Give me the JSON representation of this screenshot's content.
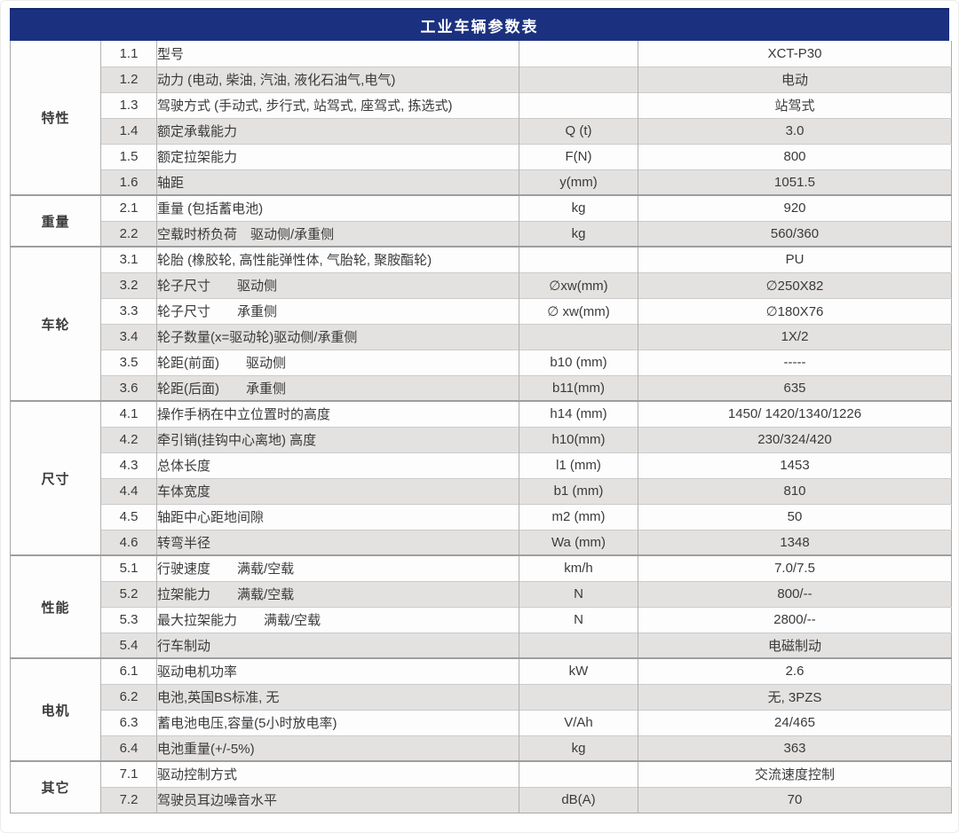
{
  "title": "工业车辆参数表",
  "colors": {
    "header_bg": "#1b3180",
    "header_text": "#ffffff",
    "stripe": "#e4e2e0",
    "row_bg": "#fdfdfd",
    "section_border": "#9e9e9e",
    "row_border": "#cbcbcb"
  },
  "sections": [
    {
      "category": "特性",
      "rows": [
        {
          "no": "1.1",
          "desc": "型号",
          "unit": "",
          "value": "XCT-P30"
        },
        {
          "no": "1.2",
          "desc": "动力 (电动, 柴油, 汽油, 液化石油气,电气)",
          "unit": "",
          "value": "电动"
        },
        {
          "no": "1.3",
          "desc": "驾驶方式 (手动式, 步行式, 站驾式, 座驾式, 拣选式)",
          "unit": "",
          "value": "站驾式"
        },
        {
          "no": "1.4",
          "desc": "额定承载能力",
          "unit": "Q (t)",
          "value": "3.0"
        },
        {
          "no": "1.5",
          "desc": "额定拉架能力",
          "unit": "F(N)",
          "value": "800"
        },
        {
          "no": "1.6",
          "desc": "轴距",
          "unit": "y(mm)",
          "value": "1051.5"
        }
      ]
    },
    {
      "category": "重量",
      "rows": [
        {
          "no": "2.1",
          "desc": "重量 (包括蓄电池)",
          "unit": "kg",
          "value": "920"
        },
        {
          "no": "2.2",
          "desc": "空载时桥负荷　驱动侧/承重侧",
          "unit": "kg",
          "value": "560/360"
        }
      ]
    },
    {
      "category": "车轮",
      "rows": [
        {
          "no": "3.1",
          "desc": "轮胎 (橡胶轮, 高性能弹性体, 气胎轮, 聚胺酯轮)",
          "unit": "",
          "value": "PU"
        },
        {
          "no": "3.2",
          "desc": "轮子尺寸　　驱动侧",
          "unit": "∅xw(mm)",
          "value": "∅250X82"
        },
        {
          "no": "3.3",
          "desc": "轮子尺寸　　承重侧",
          "unit": "∅ xw(mm)",
          "value": "∅180X76"
        },
        {
          "no": "3.4",
          "desc": "轮子数量(x=驱动轮)驱动侧/承重侧",
          "unit": "",
          "value": "1X/2"
        },
        {
          "no": "3.5",
          "desc": "轮距(前面)　　驱动侧",
          "unit": "b10 (mm)",
          "value": "-----"
        },
        {
          "no": "3.6",
          "desc": "轮距(后面)　　承重侧",
          "unit": "b11(mm)",
          "value": "635"
        }
      ]
    },
    {
      "category": "尺寸",
      "rows": [
        {
          "no": "4.1",
          "desc": "操作手柄在中立位置时的高度",
          "unit": "h14 (mm)",
          "value": "1450/ 1420/1340/1226"
        },
        {
          "no": "4.2",
          "desc": "牵引销(挂钩中心离地) 高度",
          "unit": "h10(mm)",
          "value": "230/324/420"
        },
        {
          "no": "4.3",
          "desc": "总体长度",
          "unit": "l1 (mm)",
          "value": "1453"
        },
        {
          "no": "4.4",
          "desc": "车体宽度",
          "unit": "b1 (mm)",
          "value": "810"
        },
        {
          "no": "4.5",
          "desc": "轴距中心距地间隙",
          "unit": "m2 (mm)",
          "value": "50"
        },
        {
          "no": "4.6",
          "desc": "转弯半径",
          "unit": "Wa (mm)",
          "value": "1348"
        }
      ]
    },
    {
      "category": "性能",
      "rows": [
        {
          "no": "5.1",
          "desc": "行驶速度　　满载/空载",
          "unit": "km/h",
          "value": "7.0/7.5"
        },
        {
          "no": "5.2",
          "desc": "拉架能力　　满载/空载",
          "unit": "N",
          "value": "800/--"
        },
        {
          "no": "5.3",
          "desc": "最大拉架能力　　满载/空载",
          "unit": "N",
          "value": "2800/--"
        },
        {
          "no": "5.4",
          "desc": "行车制动",
          "unit": "",
          "value": "电磁制动"
        }
      ]
    },
    {
      "category": "电机",
      "rows": [
        {
          "no": "6.1",
          "desc": "驱动电机功率",
          "unit": "kW",
          "value": "2.6"
        },
        {
          "no": "6.2",
          "desc": "电池,英国BS标准, 无",
          "unit": "",
          "value": "无, 3PZS"
        },
        {
          "no": "6.3",
          "desc": "蓄电池电压,容量(5小时放电率)",
          "unit": "V/Ah",
          "value": "24/465"
        },
        {
          "no": "6.4",
          "desc": "电池重量(+/-5%)",
          "unit": "kg",
          "value": "363"
        }
      ]
    },
    {
      "category": "其它",
      "rows": [
        {
          "no": "7.1",
          "desc": "驱动控制方式",
          "unit": "",
          "value": "交流速度控制"
        },
        {
          "no": "7.2",
          "desc": "驾驶员耳边噪音水平",
          "unit": "dB(A)",
          "value": "70"
        }
      ]
    }
  ]
}
